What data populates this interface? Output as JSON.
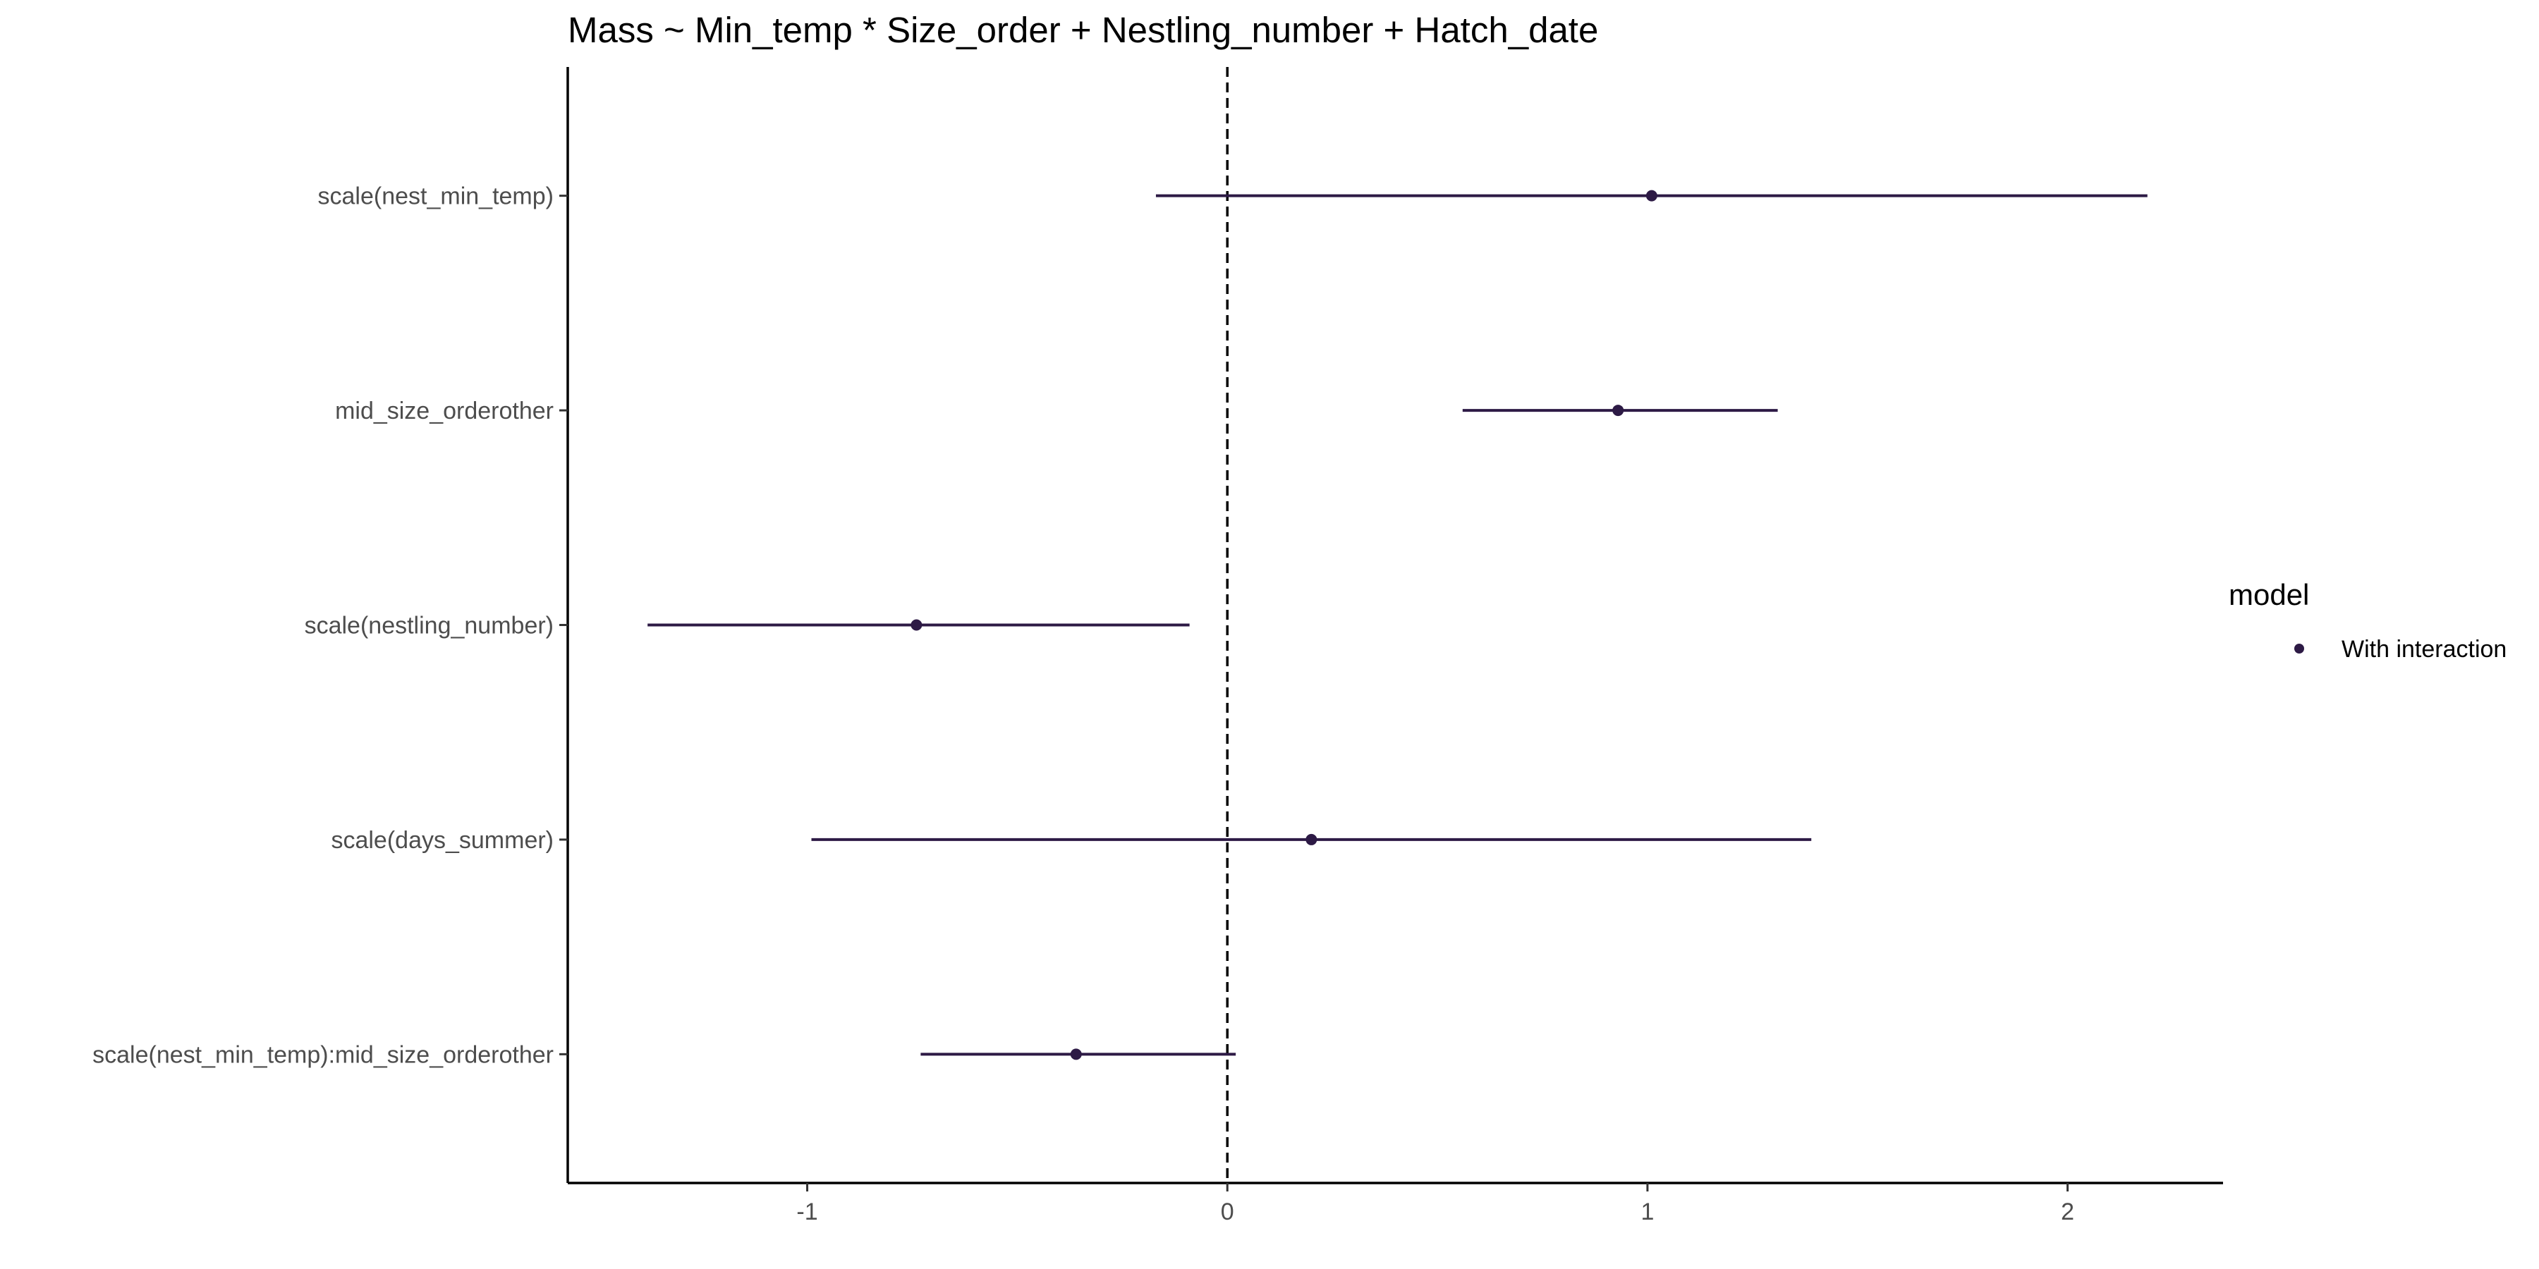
{
  "chart_data": {
    "type": "forest",
    "title": "Mass ~ Min_temp * Size_order + Nestling_number + Hatch_date",
    "xlabel": "",
    "ylabel": "",
    "xlim": [
      -1.57,
      2.37
    ],
    "x_ticks": [
      -1,
      0,
      1,
      2
    ],
    "x_tick_labels": [
      "-1",
      "0",
      "1",
      "2"
    ],
    "reference_line": 0,
    "grid": false,
    "legend": {
      "title": "model",
      "position": "right",
      "entries": [
        "With interaction"
      ]
    },
    "series": [
      {
        "name": "With interaction",
        "color": "#2d1a45",
        "points": [
          {
            "term": "scale(nest_min_temp)",
            "estimate": 1.01,
            "lower": -0.17,
            "upper": 2.19
          },
          {
            "term": "mid_size_orderother",
            "estimate": 0.93,
            "lower": 0.56,
            "upper": 1.31
          },
          {
            "term": "scale(nestling_number)",
            "estimate": -0.74,
            "lower": -1.38,
            "upper": -0.09
          },
          {
            "term": "scale(days_summer)",
            "estimate": 0.2,
            "lower": -0.99,
            "upper": 1.39
          },
          {
            "term": "scale(nest_min_temp):mid_size_orderother",
            "estimate": -0.36,
            "lower": -0.73,
            "upper": 0.02
          }
        ]
      }
    ]
  }
}
